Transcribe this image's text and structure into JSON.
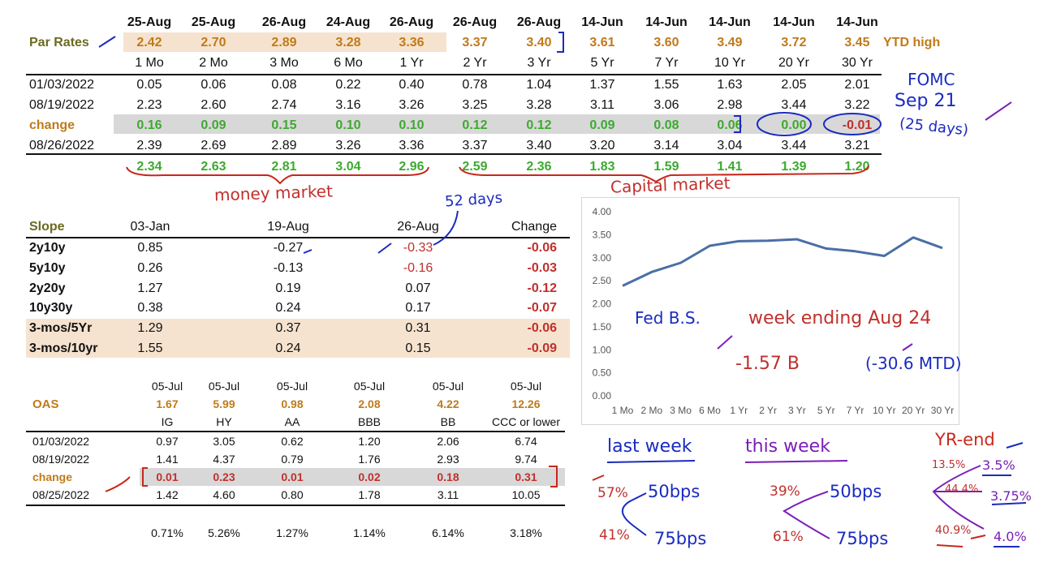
{
  "par": {
    "dates": [
      "25-Aug",
      "25-Aug",
      "26-Aug",
      "24-Aug",
      "26-Aug",
      "26-Aug",
      "26-Aug",
      "14-Jun",
      "14-Jun",
      "14-Jun",
      "14-Jun",
      "14-Jun"
    ],
    "label": "Par Rates",
    "values": [
      "2.42",
      "2.70",
      "2.89",
      "3.28",
      "3.36",
      "3.37",
      "3.40",
      "3.61",
      "3.60",
      "3.49",
      "3.72",
      "3.45"
    ],
    "ytd_label": "YTD high",
    "tenors": [
      "1 Mo",
      "2 Mo",
      "3 Mo",
      "6 Mo",
      "1 Yr",
      "2 Yr",
      "3 Yr",
      "5 Yr",
      "7 Yr",
      "10 Yr",
      "20 Yr",
      "30 Yr"
    ],
    "rows": [
      {
        "label": "01/03/2022",
        "values": [
          "0.05",
          "0.06",
          "0.08",
          "0.22",
          "0.40",
          "0.78",
          "1.04",
          "1.37",
          "1.55",
          "1.63",
          "2.05",
          "2.01"
        ]
      },
      {
        "label": "08/19/2022",
        "values": [
          "2.23",
          "2.60",
          "2.74",
          "3.16",
          "3.26",
          "3.25",
          "3.28",
          "3.11",
          "3.06",
          "2.98",
          "3.44",
          "3.22"
        ]
      },
      {
        "label": "change",
        "values": [
          "0.16",
          "0.09",
          "0.15",
          "0.10",
          "0.10",
          "0.12",
          "0.12",
          "0.09",
          "0.08",
          "0.06",
          "0.00",
          "-0.01"
        ]
      },
      {
        "label": "08/26/2022",
        "values": [
          "2.39",
          "2.69",
          "2.89",
          "3.26",
          "3.36",
          "3.37",
          "3.40",
          "3.20",
          "3.14",
          "3.04",
          "3.44",
          "3.21"
        ]
      }
    ],
    "ytd_change": [
      "2.34",
      "2.63",
      "2.81",
      "3.04",
      "2.96",
      "2.59",
      "2.36",
      "1.83",
      "1.59",
      "1.41",
      "1.39",
      "1.20"
    ]
  },
  "slope": {
    "headers": [
      "Slope",
      "03-Jan",
      "19-Aug",
      "26-Aug",
      "Change"
    ],
    "rows": [
      {
        "label": "2y10y",
        "v1": "0.85",
        "v2": "-0.27",
        "v3": "-0.33",
        "chg": "-0.06"
      },
      {
        "label": "5y10y",
        "v1": "0.26",
        "v2": "-0.13",
        "v3": "-0.16",
        "chg": "-0.03"
      },
      {
        "label": "2y20y",
        "v1": "1.27",
        "v2": "0.19",
        "v3": "0.07",
        "chg": "-0.12"
      },
      {
        "label": "10y30y",
        "v1": "0.38",
        "v2": "0.24",
        "v3": "0.17",
        "chg": "-0.07"
      },
      {
        "label": "3-mos/5Yr",
        "v1": "1.29",
        "v2": "0.37",
        "v3": "0.31",
        "chg": "-0.06"
      },
      {
        "label": "3-mos/10yr",
        "v1": "1.55",
        "v2": "0.24",
        "v3": "0.15",
        "chg": "-0.09"
      }
    ]
  },
  "oas": {
    "dates": [
      "05-Jul",
      "05-Jul",
      "05-Jul",
      "05-Jul",
      "05-Jul",
      "05-Jul"
    ],
    "label": "OAS",
    "highs": [
      "1.67",
      "5.99",
      "0.98",
      "2.08",
      "4.22",
      "12.26"
    ],
    "classes": [
      "IG",
      "HY",
      "AA",
      "BBB",
      "BB",
      "CCC or lower"
    ],
    "rows": [
      {
        "label": "01/03/2022",
        "values": [
          "0.97",
          "3.05",
          "0.62",
          "1.20",
          "2.06",
          "6.74"
        ]
      },
      {
        "label": "08/19/2022",
        "values": [
          "1.41",
          "4.37",
          "0.79",
          "1.76",
          "2.93",
          "9.74"
        ]
      },
      {
        "label": "change",
        "values": [
          "0.01",
          "0.23",
          "0.01",
          "0.02",
          "0.18",
          "0.31"
        ]
      },
      {
        "label": "08/25/2022",
        "values": [
          "1.42",
          "4.60",
          "0.80",
          "1.78",
          "3.11",
          "10.05"
        ]
      }
    ],
    "pct": [
      "0.71%",
      "5.26%",
      "1.27%",
      "1.14%",
      "6.14%",
      "3.18%"
    ]
  },
  "chart_data": {
    "type": "line",
    "categories": [
      "1 Mo",
      "2 Mo",
      "3 Mo",
      "6 Mo",
      "1 Yr",
      "2 Yr",
      "3 Yr",
      "5 Yr",
      "7 Yr",
      "10 Yr",
      "20 Yr",
      "30 Yr"
    ],
    "series": [
      {
        "values": [
          2.39,
          2.69,
          2.89,
          3.26,
          3.36,
          3.37,
          3.4,
          3.2,
          3.14,
          3.04,
          3.44,
          3.21
        ]
      }
    ],
    "yticks": [
      "4.00",
      "3.50",
      "3.00",
      "2.50",
      "2.00",
      "1.50",
      "1.00",
      "0.50",
      "0.00"
    ],
    "ylim": [
      0,
      4
    ],
    "color": "#4a6fa5"
  },
  "notes": {
    "money_market": "money market",
    "capital_market": "Capital market",
    "days52": "52 days",
    "fomc1": "FOMC",
    "fomc2": "Sep 21",
    "fomc3": "(25 days)",
    "fed": "Fed B.S.",
    "week_ending": "week ending Aug 24",
    "minus157": "-1.57 B",
    "mtd": "(-30.6 MTD)",
    "last_week": "last week",
    "this_week": "this week",
    "yr_end": "YR-end",
    "lw_a": "57%",
    "lw_b": "41%",
    "tw_a": "39%",
    "tw_b": "61%",
    "bps50": "50bps",
    "bps75": "75bps",
    "p135": "13.5%",
    "p444": "44.4%",
    "p409": "40.9%",
    "r35": "3.5%",
    "r375": "3.75%",
    "r40": "4.0%"
  },
  "colors": {
    "orange": "#c07a1a",
    "green": "#3daa2f",
    "red": "#c0302c",
    "band": "#f6e3cf",
    "gray": "#d8d8d8",
    "blue_ink": "#1a2bbf",
    "red_ink": "#c8281c",
    "purple_ink": "#7a1fb8"
  }
}
